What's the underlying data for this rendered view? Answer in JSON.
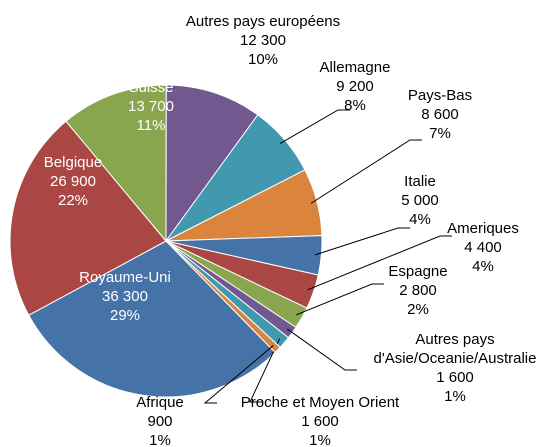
{
  "chart_data": {
    "type": "pie",
    "categories": [
      "Royaume-Uni",
      "Belgique",
      "Suisse",
      "Autres pays européens",
      "Allemagne",
      "Pays-Bas",
      "Italie",
      "Ameriques",
      "Espagne",
      "Autres pays d'Asie/Oceanie/Australie",
      "Proche et Moyen Orient",
      "Afrique"
    ],
    "values": [
      36300,
      26900,
      13700,
      12300,
      9200,
      8600,
      5000,
      4400,
      2800,
      1600,
      1600,
      900
    ],
    "value_labels": [
      "36 300",
      "26 900",
      "13 700",
      "12 300",
      "9 200",
      "8 600",
      "5 000",
      "4 400",
      "2 800",
      "1 600",
      "1 600",
      "900"
    ],
    "percent_labels": [
      "29%",
      "22%",
      "11%",
      "10%",
      "8%",
      "7%",
      "4%",
      "4%",
      "2%",
      "1%",
      "1%",
      "1%"
    ],
    "colors": [
      "#4572a7",
      "#aa4643",
      "#89a54e",
      "#71588f",
      "#4198af",
      "#db843d",
      "#4572a7",
      "#aa4643",
      "#89a54e",
      "#71588f",
      "#4198af",
      "#db843d"
    ]
  }
}
